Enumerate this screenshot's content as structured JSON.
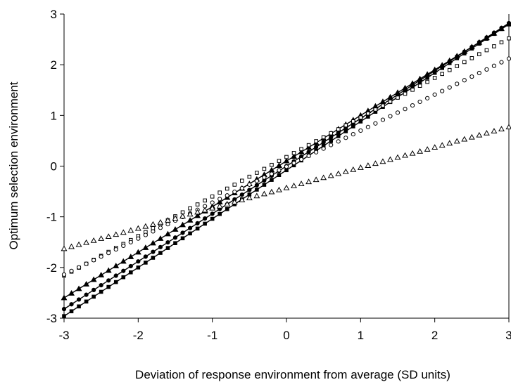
{
  "chart_data": {
    "type": "scatter",
    "title": "",
    "xlabel": "Deviation of response environment from average (SD units)",
    "ylabel": "Optimum selection environment",
    "xlim": [
      -3,
      3
    ],
    "ylim": [
      -3,
      3
    ],
    "xticks": [
      -3,
      -2,
      -1,
      0,
      1,
      2,
      3
    ],
    "yticks": [
      -3,
      -2,
      -1,
      0,
      1,
      2,
      3
    ],
    "xtick_labels": [
      "-3",
      "-2",
      "-1",
      "0",
      "1",
      "2",
      "3"
    ],
    "ytick_labels": [
      "-3",
      "-2",
      "-1",
      "0",
      "1",
      "2",
      "3"
    ],
    "grid": false,
    "legend": "none",
    "x_sampling": {
      "start": -3,
      "end": 3,
      "count": 61
    },
    "series": [
      {
        "marker": "filled-triangle",
        "line": true,
        "fill": "#000000",
        "intercept": 0.1,
        "slope": 0.9
      },
      {
        "marker": "filled-circle",
        "line": true,
        "fill": "#000000",
        "intercept": 0.0,
        "slope": 0.94
      },
      {
        "marker": "filled-square",
        "line": true,
        "fill": "#000000",
        "intercept": -0.08,
        "slope": 0.96
      },
      {
        "marker": "open-square",
        "line": false,
        "fill": "#ffffff",
        "intercept": 0.18,
        "slope": 0.78
      },
      {
        "marker": "open-circle",
        "line": false,
        "fill": "#ffffff",
        "intercept": -0.01,
        "slope": 0.71
      },
      {
        "marker": "open-triangle",
        "line": false,
        "fill": "#ffffff",
        "intercept": -0.43,
        "slope": 0.4
      }
    ]
  }
}
